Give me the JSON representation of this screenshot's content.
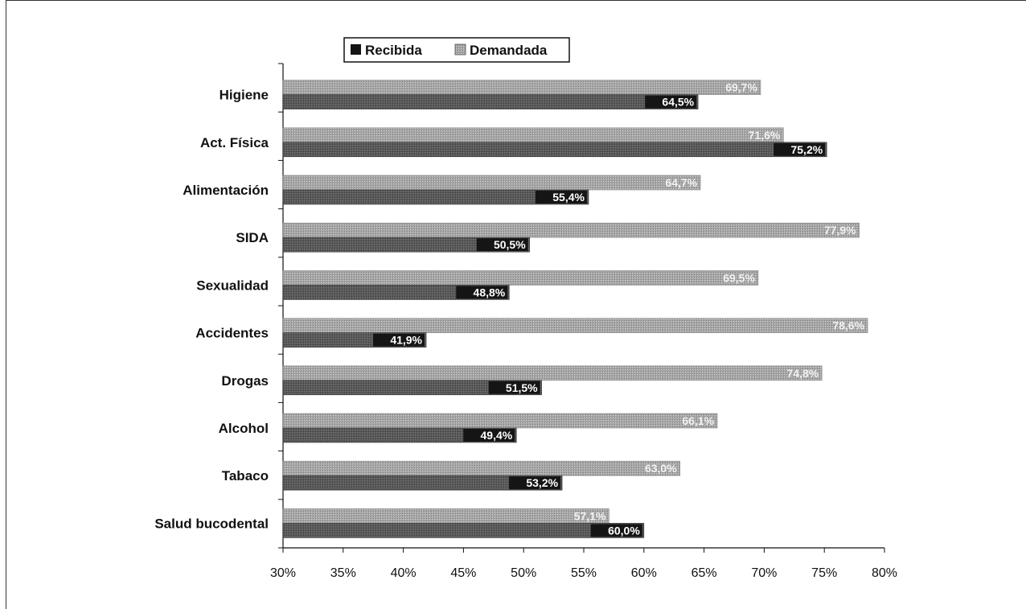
{
  "chart_data": {
    "type": "bar",
    "orientation": "horizontal",
    "categories": [
      "Higiene",
      "Act. Física",
      "Alimentación",
      "SIDA",
      "Sexualidad",
      "Accidentes",
      "Drogas",
      "Alcohol",
      "Tabaco",
      "Salud bucodental"
    ],
    "series": [
      {
        "name": "Recibida",
        "values": [
          64.5,
          75.2,
          55.4,
          50.5,
          48.8,
          41.9,
          51.5,
          49.4,
          53.2,
          60.0
        ],
        "labels": [
          "64,5%",
          "75,2%",
          "55,4%",
          "50,5%",
          "48,8%",
          "41,9%",
          "51,5%",
          "49,4%",
          "53,2%",
          "60,0%"
        ]
      },
      {
        "name": "Demandada",
        "values": [
          69.7,
          71.6,
          64.7,
          77.9,
          69.5,
          78.6,
          74.8,
          66.1,
          63.0,
          57.1
        ],
        "labels": [
          "69,7%",
          "71,6%",
          "64,7%",
          "77,9%",
          "69,5%",
          "78,6%",
          "74,8%",
          "66,1%",
          "63,0%",
          "57,1%"
        ]
      }
    ],
    "xlim": [
      30,
      80
    ],
    "xticks": [
      30,
      35,
      40,
      45,
      50,
      55,
      60,
      65,
      70,
      75,
      80
    ],
    "xtick_labels": [
      "30%",
      "35%",
      "40%",
      "45%",
      "50%",
      "55%",
      "60%",
      "65%",
      "70%",
      "75%",
      "80%"
    ],
    "legend_position": "top-left",
    "colors": {
      "Recibida": "#151515",
      "Demandada": "#9e9e9e"
    },
    "grid": false
  }
}
